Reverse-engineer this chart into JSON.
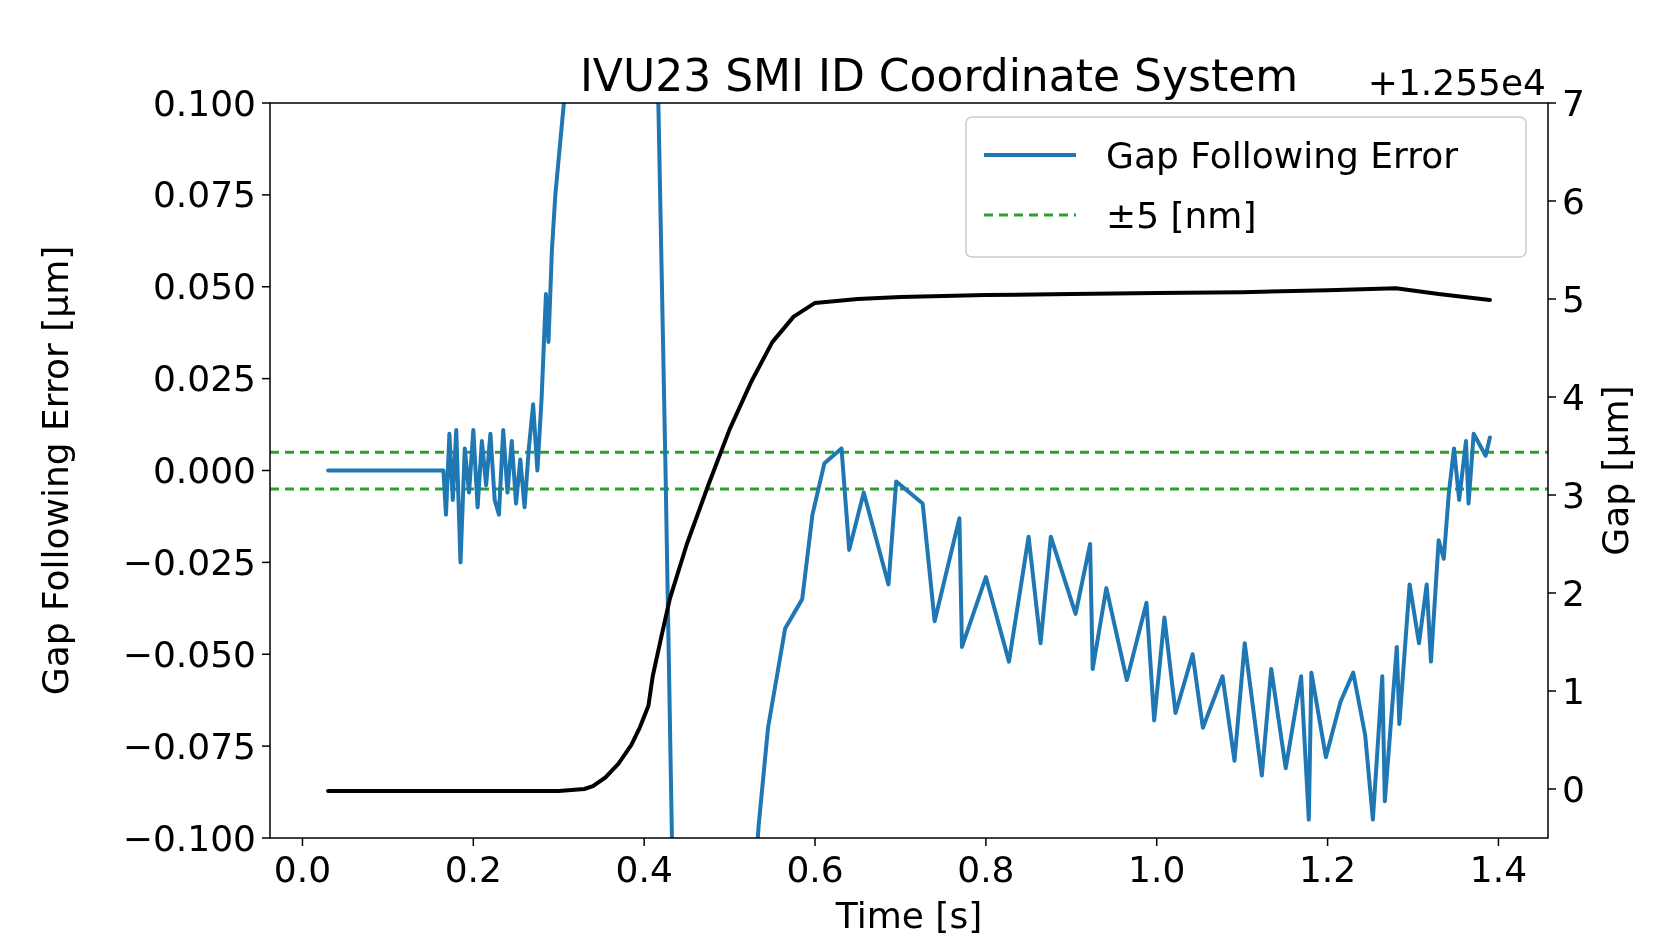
{
  "chart_data": {
    "type": "line",
    "title": "IVU23 SMI ID Coordinate System",
    "xlabel": "Time [s]",
    "ylabel": "Gap Following Error [μm]",
    "y2label": "Gap [μm]",
    "annotations": [
      "+1.255e4"
    ],
    "xlim": [
      -0.038,
      1.458
    ],
    "xticks": [
      {
        "value": 0,
        "label": "0.0"
      },
      {
        "value": 0.2,
        "label": "0.2"
      },
      {
        "value": 0.4,
        "label": "0.4"
      },
      {
        "value": 0.6,
        "label": "0.6"
      },
      {
        "value": 0.8,
        "label": "0.8"
      },
      {
        "value": 1.0,
        "label": "1.0"
      },
      {
        "value": 1.2,
        "label": "1.2"
      },
      {
        "value": 1.4,
        "label": "1.4"
      }
    ],
    "ylim": [
      -0.1,
      0.1
    ],
    "yticks": [
      {
        "value": -0.1,
        "label": "−0.100"
      },
      {
        "value": -0.075,
        "label": "−0.075"
      },
      {
        "value": -0.05,
        "label": "−0.050"
      },
      {
        "value": -0.025,
        "label": "−0.025"
      },
      {
        "value": 0,
        "label": "0.000"
      },
      {
        "value": 0.025,
        "label": "0.025"
      },
      {
        "value": 0.05,
        "label": "0.050"
      },
      {
        "value": 0.075,
        "label": "0.075"
      },
      {
        "value": 0.1,
        "label": "0.100"
      }
    ],
    "y2lim": [
      -0.5,
      7
    ],
    "y2ticks": [
      0,
      1,
      2,
      3,
      4,
      5,
      6,
      7
    ],
    "legend": "top right",
    "grid": false,
    "line_style": "solid",
    "marker": "none",
    "series": [
      {
        "name": "Gap Following Error",
        "color": "#1f77b4",
        "x": [
          0.03,
          0.165,
          0.168,
          0.172,
          0.176,
          0.18,
          0.185,
          0.19,
          0.195,
          0.2,
          0.205,
          0.21,
          0.215,
          0.22,
          0.225,
          0.23,
          0.235,
          0.24,
          0.245,
          0.25,
          0.255,
          0.26,
          0.265,
          0.27,
          0.275,
          0.28,
          0.285,
          0.288,
          0.292,
          0.296,
          0.3,
          0.306,
          0.31,
          0.4166,
          0.425,
          0.4325,
          0.44,
          0.533,
          0.534,
          0.545,
          0.565,
          0.585,
          0.597,
          0.611,
          0.631,
          0.64,
          0.657,
          0.686,
          0.695,
          0.726,
          0.74,
          0.769,
          0.772,
          0.8,
          0.827,
          0.85,
          0.864,
          0.876,
          0.905,
          0.922,
          0.925,
          0.941,
          0.965,
          0.988,
          0.997,
          1.009,
          1.022,
          1.042,
          1.054,
          1.077,
          1.091,
          1.103,
          1.123,
          1.134,
          1.151,
          1.169,
          1.178,
          1.181,
          1.198,
          1.215,
          1.23,
          1.244,
          1.253,
          1.264,
          1.267,
          1.281,
          1.284,
          1.296,
          1.307,
          1.316,
          1.321,
          1.33,
          1.336,
          1.342,
          1.348,
          1.354,
          1.362,
          1.365,
          1.371,
          1.385,
          1.39
        ],
        "values": [
          0,
          0,
          -0.012,
          0.01,
          -0.008,
          0.011,
          -0.025,
          0.006,
          -0.006,
          0.011,
          -0.01,
          0.008,
          -0.004,
          0.01,
          -0.008,
          -0.012,
          0.011,
          -0.006,
          0.008,
          -0.009,
          0.003,
          -0.01,
          0.006,
          0.018,
          0.0,
          0.02,
          0.048,
          0.035,
          0.06,
          0.075,
          0.085,
          0.1,
          null,
          0.1,
          0.0,
          -0.1,
          null,
          -0.1,
          -0.0966,
          -0.07,
          -0.043,
          -0.035,
          -0.012,
          0.002,
          0.006,
          -0.0216,
          -0.006,
          -0.031,
          -0.003,
          -0.009,
          -0.041,
          -0.013,
          -0.048,
          -0.029,
          -0.052,
          -0.018,
          -0.047,
          -0.018,
          -0.039,
          -0.02,
          -0.054,
          -0.032,
          -0.057,
          -0.036,
          -0.068,
          -0.04,
          -0.066,
          -0.05,
          -0.07,
          -0.056,
          -0.079,
          -0.047,
          -0.083,
          -0.054,
          -0.081,
          -0.056,
          -0.095,
          -0.055,
          -0.078,
          -0.063,
          -0.055,
          -0.072,
          -0.095,
          -0.056,
          -0.09,
          -0.048,
          -0.069,
          -0.031,
          -0.047,
          -0.031,
          -0.052,
          -0.019,
          -0.024,
          -0.006,
          0.006,
          -0.008,
          0.008,
          -0.009,
          0.01,
          0.004,
          0.009
        ]
      },
      {
        "color": "#000000",
        "axis": "y2",
        "x": [
          0.03,
          0.1,
          0.2,
          0.3,
          0.33,
          0.34,
          0.355,
          0.37,
          0.385,
          0.395,
          0.405,
          0.41,
          0.42,
          0.43,
          0.45,
          0.475,
          0.5,
          0.525,
          0.55,
          0.575,
          0.6,
          0.65,
          0.7,
          0.8,
          0.9,
          1.0,
          1.1,
          1.2,
          1.28,
          1.33,
          1.39
        ],
        "values": [
          -0.02,
          -0.02,
          -0.02,
          -0.02,
          0.0,
          0.03,
          0.12,
          0.26,
          0.45,
          0.63,
          0.85,
          1.15,
          1.55,
          1.94,
          2.5,
          3.1,
          3.67,
          4.15,
          4.56,
          4.82,
          4.96,
          5.0,
          5.02,
          5.04,
          5.05,
          5.06,
          5.07,
          5.09,
          5.11,
          5.05,
          4.99
        ]
      }
    ],
    "ref_lines": [
      {
        "axis": "y",
        "value": 0.005,
        "label": "±5 [nm]",
        "color": "#2ca02c",
        "line_style": "dashed"
      },
      {
        "axis": "y",
        "value": -0.005,
        "color": "#2ca02c",
        "line_style": "dashed"
      }
    ]
  }
}
